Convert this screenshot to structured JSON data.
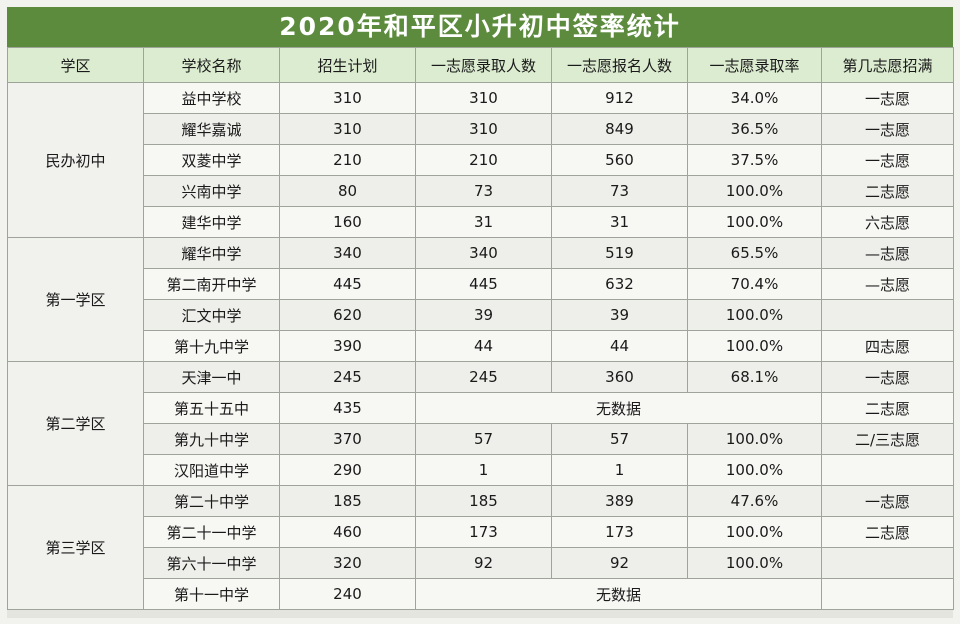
{
  "title": "2020年和平区小升初中签率统计",
  "headers": [
    "学区",
    "学校名称",
    "招生计划",
    "一志愿录取人数",
    "一志愿报名人数",
    "一志愿录取率",
    "第几志愿招满"
  ],
  "groups": [
    {
      "district": "民办初中",
      "rows": [
        {
          "school": "益中学校",
          "plan": "310",
          "admitted": "310",
          "applied": "912",
          "rate": "34.0%",
          "filled": "一志愿"
        },
        {
          "school": "耀华嘉诚",
          "plan": "310",
          "admitted": "310",
          "applied": "849",
          "rate": "36.5%",
          "filled": "一志愿"
        },
        {
          "school": "双菱中学",
          "plan": "210",
          "admitted": "210",
          "applied": "560",
          "rate": "37.5%",
          "filled": "一志愿"
        },
        {
          "school": "兴南中学",
          "plan": "80",
          "admitted": "73",
          "applied": "73",
          "rate": "100.0%",
          "filled": "二志愿"
        },
        {
          "school": "建华中学",
          "plan": "160",
          "admitted": "31",
          "applied": "31",
          "rate": "100.0%",
          "filled": "六志愿"
        }
      ]
    },
    {
      "district": "第一学区",
      "rows": [
        {
          "school": "耀华中学",
          "plan": "340",
          "admitted": "340",
          "applied": "519",
          "rate": "65.5%",
          "filled": "—志愿"
        },
        {
          "school": "第二南开中学",
          "plan": "445",
          "admitted": "445",
          "applied": "632",
          "rate": "70.4%",
          "filled": "—志愿"
        },
        {
          "school": "汇文中学",
          "plan": "620",
          "admitted": "39",
          "applied": "39",
          "rate": "100.0%",
          "filled": ""
        },
        {
          "school": "第十九中学",
          "plan": "390",
          "admitted": "44",
          "applied": "44",
          "rate": "100.0%",
          "filled": "四志愿"
        }
      ]
    },
    {
      "district": "第二学区",
      "rows": [
        {
          "school": "天津一中",
          "plan": "245",
          "admitted": "245",
          "applied": "360",
          "rate": "68.1%",
          "filled": "一志愿"
        },
        {
          "school": "第五十五中",
          "plan": "435",
          "nodata": "无数据",
          "filled": "二志愿"
        },
        {
          "school": "第九十中学",
          "plan": "370",
          "admitted": "57",
          "applied": "57",
          "rate": "100.0%",
          "filled": "二/三志愿"
        },
        {
          "school": "汉阳道中学",
          "plan": "290",
          "admitted": "1",
          "applied": "1",
          "rate": "100.0%",
          "filled": ""
        }
      ]
    },
    {
      "district": "第三学区",
      "rows": [
        {
          "school": "第二十中学",
          "plan": "185",
          "admitted": "185",
          "applied": "389",
          "rate": "47.6%",
          "filled": "一志愿"
        },
        {
          "school": "第二十一中学",
          "plan": "460",
          "admitted": "173",
          "applied": "173",
          "rate": "100.0%",
          "filled": "二志愿"
        },
        {
          "school": "第六十一中学",
          "plan": "320",
          "admitted": "92",
          "applied": "92",
          "rate": "100.0%",
          "filled": ""
        },
        {
          "school": "第十一中学",
          "plan": "240",
          "nodata": "无数据",
          "filled": ""
        }
      ]
    }
  ]
}
